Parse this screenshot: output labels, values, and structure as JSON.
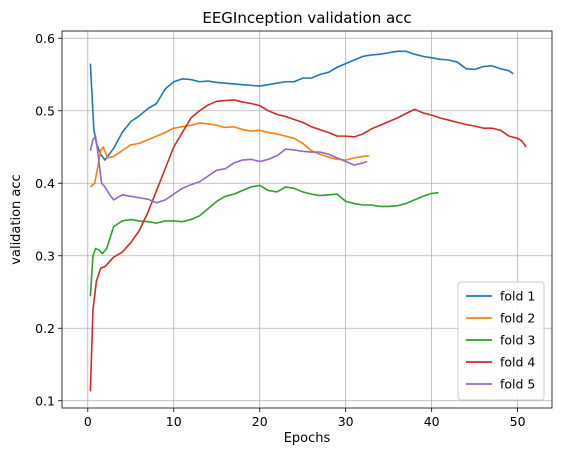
{
  "chart_data": {
    "type": "line",
    "title": "EEGInception validation acc",
    "xlabel": "Epochs",
    "ylabel": "validation acc",
    "xlim": [
      -3,
      54
    ],
    "ylim": [
      0.09,
      0.61
    ],
    "xticks": [
      0,
      10,
      20,
      30,
      40,
      50
    ],
    "yticks": [
      0.1,
      0.2,
      0.3,
      0.4,
      0.5,
      0.6
    ],
    "ytick_labels": [
      "0.1",
      "0.2",
      "0.3",
      "0.4",
      "0.5",
      "0.6"
    ],
    "grid": true,
    "legend_position": "lower right",
    "series": [
      {
        "name": "fold 1",
        "color": "#1f77b4",
        "points": [
          [
            0.3,
            0.565
          ],
          [
            0.7,
            0.475
          ],
          [
            1.0,
            0.455
          ],
          [
            1.5,
            0.44
          ],
          [
            2,
            0.432
          ],
          [
            3,
            0.448
          ],
          [
            4,
            0.47
          ],
          [
            5,
            0.485
          ],
          [
            6,
            0.493
          ],
          [
            7,
            0.503
          ],
          [
            8,
            0.51
          ],
          [
            9,
            0.53
          ],
          [
            10,
            0.54
          ],
          [
            11,
            0.544
          ],
          [
            12,
            0.543
          ],
          [
            13,
            0.54
          ],
          [
            14,
            0.541
          ],
          [
            15,
            0.539
          ],
          [
            16,
            0.538
          ],
          [
            17,
            0.537
          ],
          [
            18,
            0.536
          ],
          [
            19,
            0.535
          ],
          [
            20,
            0.534
          ],
          [
            21,
            0.536
          ],
          [
            22,
            0.538
          ],
          [
            23,
            0.54
          ],
          [
            24,
            0.54
          ],
          [
            25,
            0.545
          ],
          [
            26,
            0.545
          ],
          [
            27,
            0.55
          ],
          [
            28,
            0.553
          ],
          [
            29,
            0.56
          ],
          [
            30,
            0.565
          ],
          [
            31,
            0.57
          ],
          [
            32,
            0.575
          ],
          [
            33,
            0.577
          ],
          [
            34,
            0.578
          ],
          [
            35,
            0.58
          ],
          [
            36,
            0.582
          ],
          [
            37,
            0.582
          ],
          [
            38,
            0.578
          ],
          [
            39,
            0.575
          ],
          [
            40,
            0.573
          ],
          [
            41,
            0.571
          ],
          [
            42,
            0.57
          ],
          [
            43,
            0.567
          ],
          [
            44,
            0.558
          ],
          [
            45,
            0.557
          ],
          [
            46,
            0.561
          ],
          [
            47,
            0.562
          ],
          [
            48,
            0.558
          ],
          [
            49,
            0.555
          ],
          [
            49.5,
            0.551
          ]
        ]
      },
      {
        "name": "fold 2",
        "color": "#ff7f0e",
        "points": [
          [
            0.3,
            0.395
          ],
          [
            0.8,
            0.4
          ],
          [
            1.2,
            0.425
          ],
          [
            1.5,
            0.445
          ],
          [
            1.8,
            0.45
          ],
          [
            2.3,
            0.435
          ],
          [
            3,
            0.437
          ],
          [
            4,
            0.445
          ],
          [
            5,
            0.453
          ],
          [
            6,
            0.455
          ],
          [
            7,
            0.46
          ],
          [
            8,
            0.465
          ],
          [
            9,
            0.47
          ],
          [
            10,
            0.476
          ],
          [
            11,
            0.478
          ],
          [
            12,
            0.48
          ],
          [
            13,
            0.483
          ],
          [
            14,
            0.482
          ],
          [
            15,
            0.48
          ],
          [
            16,
            0.477
          ],
          [
            17,
            0.478
          ],
          [
            18,
            0.474
          ],
          [
            19,
            0.472
          ],
          [
            20,
            0.473
          ],
          [
            21,
            0.47
          ],
          [
            22,
            0.468
          ],
          [
            23,
            0.465
          ],
          [
            24,
            0.462
          ],
          [
            25,
            0.455
          ],
          [
            26,
            0.445
          ],
          [
            27,
            0.44
          ],
          [
            28,
            0.436
          ],
          [
            29,
            0.433
          ],
          [
            30,
            0.432
          ],
          [
            31,
            0.435
          ],
          [
            32,
            0.437
          ],
          [
            32.7,
            0.438
          ]
        ]
      },
      {
        "name": "fold 3",
        "color": "#2ca02c",
        "points": [
          [
            0.3,
            0.244
          ],
          [
            0.6,
            0.3
          ],
          [
            0.9,
            0.31
          ],
          [
            1.3,
            0.308
          ],
          [
            1.7,
            0.303
          ],
          [
            2.2,
            0.31
          ],
          [
            3,
            0.34
          ],
          [
            4,
            0.348
          ],
          [
            5,
            0.35
          ],
          [
            6,
            0.348
          ],
          [
            7,
            0.347
          ],
          [
            8,
            0.345
          ],
          [
            9,
            0.348
          ],
          [
            10,
            0.348
          ],
          [
            11,
            0.347
          ],
          [
            12,
            0.35
          ],
          [
            13,
            0.355
          ],
          [
            14,
            0.365
          ],
          [
            15,
            0.375
          ],
          [
            16,
            0.382
          ],
          [
            17,
            0.385
          ],
          [
            18,
            0.39
          ],
          [
            19,
            0.395
          ],
          [
            20,
            0.397
          ],
          [
            21,
            0.39
          ],
          [
            22,
            0.388
          ],
          [
            23,
            0.395
          ],
          [
            24,
            0.393
          ],
          [
            25,
            0.388
          ],
          [
            26,
            0.385
          ],
          [
            27,
            0.383
          ],
          [
            28,
            0.384
          ],
          [
            29,
            0.385
          ],
          [
            30,
            0.375
          ],
          [
            31,
            0.372
          ],
          [
            32,
            0.37
          ],
          [
            33,
            0.37
          ],
          [
            34,
            0.368
          ],
          [
            35,
            0.368
          ],
          [
            36,
            0.369
          ],
          [
            37,
            0.372
          ],
          [
            38,
            0.377
          ],
          [
            39,
            0.382
          ],
          [
            40,
            0.386
          ],
          [
            40.8,
            0.387
          ]
        ]
      },
      {
        "name": "fold 4",
        "color": "#d62728",
        "points": [
          [
            0.3,
            0.113
          ],
          [
            0.6,
            0.225
          ],
          [
            1,
            0.265
          ],
          [
            1.5,
            0.283
          ],
          [
            2,
            0.285
          ],
          [
            3,
            0.298
          ],
          [
            4,
            0.305
          ],
          [
            5,
            0.318
          ],
          [
            6,
            0.335
          ],
          [
            7,
            0.36
          ],
          [
            8,
            0.39
          ],
          [
            9,
            0.42
          ],
          [
            10,
            0.45
          ],
          [
            11,
            0.47
          ],
          [
            12,
            0.49
          ],
          [
            13,
            0.5
          ],
          [
            14,
            0.508
          ],
          [
            15,
            0.513
          ],
          [
            16,
            0.514
          ],
          [
            17,
            0.515
          ],
          [
            18,
            0.512
          ],
          [
            19,
            0.51
          ],
          [
            20,
            0.507
          ],
          [
            21,
            0.5
          ],
          [
            22,
            0.495
          ],
          [
            23,
            0.492
          ],
          [
            24,
            0.488
          ],
          [
            25,
            0.484
          ],
          [
            26,
            0.478
          ],
          [
            27,
            0.474
          ],
          [
            28,
            0.47
          ],
          [
            29,
            0.465
          ],
          [
            30,
            0.465
          ],
          [
            31,
            0.464
          ],
          [
            32,
            0.468
          ],
          [
            33,
            0.475
          ],
          [
            34,
            0.48
          ],
          [
            35,
            0.485
          ],
          [
            36,
            0.49
          ],
          [
            37,
            0.496
          ],
          [
            38,
            0.502
          ],
          [
            39,
            0.497
          ],
          [
            40,
            0.494
          ],
          [
            41,
            0.49
          ],
          [
            42,
            0.487
          ],
          [
            43,
            0.484
          ],
          [
            44,
            0.481
          ],
          [
            45,
            0.479
          ],
          [
            46,
            0.476
          ],
          [
            47,
            0.476
          ],
          [
            48,
            0.473
          ],
          [
            49,
            0.465
          ],
          [
            50,
            0.462
          ],
          [
            50.5,
            0.458
          ],
          [
            51,
            0.45
          ]
        ]
      },
      {
        "name": "fold 5",
        "color": "#9467bd",
        "points": [
          [
            0.3,
            0.445
          ],
          [
            0.6,
            0.46
          ],
          [
            0.9,
            0.465
          ],
          [
            1.2,
            0.44
          ],
          [
            1.6,
            0.4
          ],
          [
            2,
            0.395
          ],
          [
            2.5,
            0.385
          ],
          [
            3,
            0.377
          ],
          [
            4,
            0.384
          ],
          [
            5,
            0.382
          ],
          [
            6,
            0.38
          ],
          [
            7,
            0.378
          ],
          [
            8,
            0.373
          ],
          [
            9,
            0.377
          ],
          [
            10,
            0.385
          ],
          [
            11,
            0.393
          ],
          [
            12,
            0.398
          ],
          [
            13,
            0.402
          ],
          [
            14,
            0.41
          ],
          [
            15,
            0.418
          ],
          [
            16,
            0.42
          ],
          [
            17,
            0.428
          ],
          [
            18,
            0.432
          ],
          [
            19,
            0.433
          ],
          [
            20,
            0.43
          ],
          [
            21,
            0.433
          ],
          [
            22,
            0.438
          ],
          [
            23,
            0.447
          ],
          [
            24,
            0.446
          ],
          [
            25,
            0.444
          ],
          [
            26,
            0.443
          ],
          [
            27,
            0.443
          ],
          [
            28,
            0.44
          ],
          [
            29,
            0.435
          ],
          [
            30,
            0.43
          ],
          [
            31,
            0.425
          ],
          [
            32,
            0.428
          ],
          [
            32.5,
            0.43
          ]
        ]
      }
    ]
  }
}
